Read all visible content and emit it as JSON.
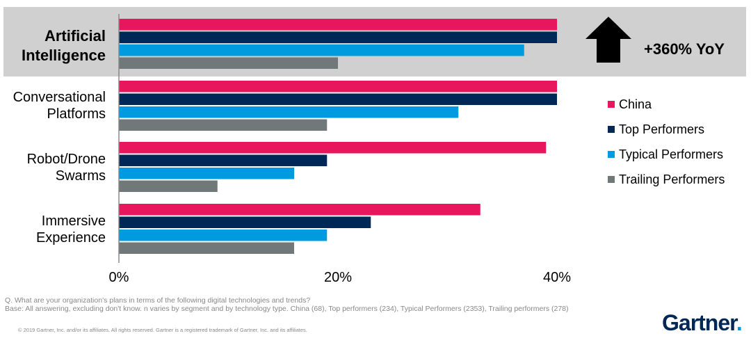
{
  "chart_data": {
    "type": "bar",
    "orientation": "horizontal",
    "categories": [
      "Artificial Intelligence",
      "Conversational Platforms",
      "Robot/Drone Swarms",
      "Immersive Experience"
    ],
    "series": [
      {
        "name": "China",
        "color": "#e8175d",
        "values": [
          40,
          40,
          39,
          33
        ]
      },
      {
        "name": "Top Performers",
        "color": "#002856",
        "values": [
          40,
          40,
          19,
          23
        ]
      },
      {
        "name": "Typical Performers",
        "color": "#009bde",
        "values": [
          37,
          31,
          16,
          19
        ]
      },
      {
        "name": "Trailing Performers",
        "color": "#707879",
        "values": [
          20,
          19,
          9,
          16
        ]
      }
    ],
    "xlim": [
      0,
      40
    ],
    "xticks": [
      "0%",
      "20%",
      "40%"
    ],
    "highlight": {
      "category": "Artificial Intelligence",
      "annotation": "+360% YoY"
    }
  },
  "labels": {
    "cat0_line1": "Artificial",
    "cat0_line2": "Intelligence",
    "cat1_line1": "Conversational",
    "cat1_line2": "Platforms",
    "cat2_line1": "Robot/Drone",
    "cat2_line2": "Swarms",
    "cat3_line1": "Immersive",
    "cat3_line2": "Experience"
  },
  "legend": {
    "china": "China",
    "top": "Top Performers",
    "typical": "Typical Performers",
    "trailing": "Trailing Performers"
  },
  "annotation": "+360% YoY",
  "footnote": {
    "question": "Q. What are your organization's plans in terms of the following digital technologies and trends?",
    "base": "Base: All answering, excluding don't know. n varies by segment and by technology type. China (68), Top performers (234), Typical Performers (2353), Trailing performers (278)"
  },
  "copyright": "© 2019 Gartner, Inc. and/or its affiliates. All rights reserved. Gartner is a registered trademark of Gartner, Inc. and its affiliates.",
  "brand": {
    "name": "Gartner",
    "dot": "."
  }
}
